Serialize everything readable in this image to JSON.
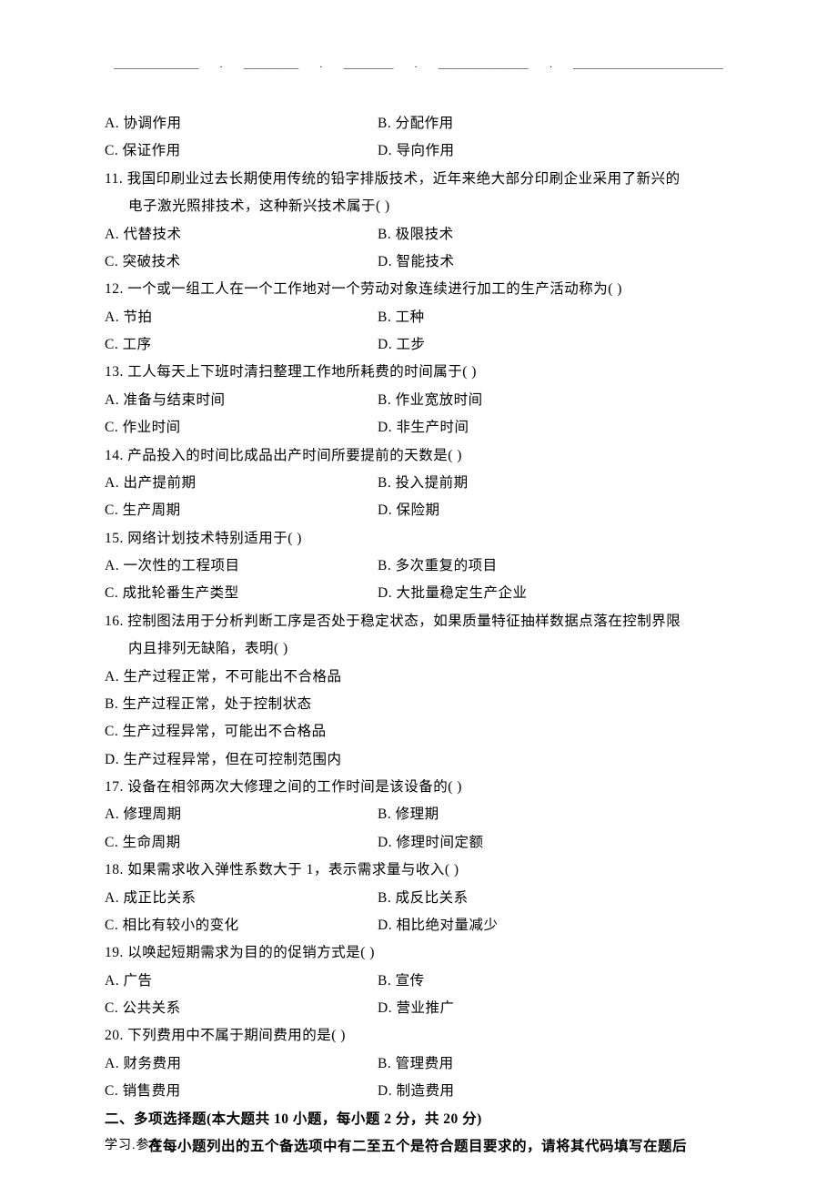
{
  "header_dash_segments": [
    "_________________",
    ".",
    "___________",
    ".",
    "__________",
    ".",
    "__________________",
    ".",
    "______________________________"
  ],
  "q10": {
    "optA": "A. 协调作用",
    "optB": "B. 分配作用",
    "optC": "C. 保证作用",
    "optD": "D. 导向作用"
  },
  "q11": {
    "line1": "11. 我国印刷业过去长期使用传统的铅字排版技术，近年来绝大部分印刷企业采用了新兴的",
    "line2": "电子激光照排技术，这种新兴技术属于(    )",
    "optA": "A. 代替技术",
    "optB": "B. 极限技术",
    "optC": "C. 突破技术",
    "optD": "D. 智能技术"
  },
  "q12": {
    "line1": "12. 一个或一组工人在一个工作地对一个劳动对象连续进行加工的生产活动称为(    )",
    "optA": "A. 节拍",
    "optB": "B. 工种",
    "optC": "C. 工序",
    "optD": "D. 工步"
  },
  "q13": {
    "line1": "13. 工人每天上下班时清扫整理工作地所耗费的时间属于(    )",
    "optA": "A. 准备与结束时间",
    "optB": "B. 作业宽放时间",
    "optC": "C. 作业时间",
    "optD": "D. 非生产时间"
  },
  "q14": {
    "line1": "14. 产品投入的时间比成品出产时间所要提前的天数是(    )",
    "optA": "A. 出产提前期",
    "optB": "B. 投入提前期",
    "optC": "C. 生产周期",
    "optD": "D. 保险期"
  },
  "q15": {
    "line1": "15. 网络计划技术特别适用于(    )",
    "optA": "A. 一次性的工程项目",
    "optB": "B. 多次重复的项目",
    "optC": "C. 成批轮番生产类型",
    "optD": "D. 大批量稳定生产企业"
  },
  "q16": {
    "line1": "16. 控制图法用于分析判断工序是否处于稳定状态，如果质量特征抽样数据点落在控制界限",
    "line2": "内且排列无缺陷，表明(    )",
    "optA": "A. 生产过程正常，不可能出不合格品",
    "optB": "B. 生产过程正常，处于控制状态",
    "optC": "C. 生产过程异常，可能出不合格品",
    "optD": "D. 生产过程异常，但在可控制范围内"
  },
  "q17": {
    "line1": "17. 设备在相邻两次大修理之间的工作时间是该设备的(    )",
    "optA": "A. 修理周期",
    "optB": "B. 修理期",
    "optC": "C. 生命周期",
    "optD": "D. 修理时间定额"
  },
  "q18": {
    "line1": "18. 如果需求收入弹性系数大于 1，表示需求量与收入(    )",
    "optA": "A. 成正比关系",
    "optB": "B. 成反比关系",
    "optC": "C. 相比有较小的变化",
    "optD": "D. 相比绝对量减少"
  },
  "q19": {
    "line1": "19. 以唤起短期需求为目的的促销方式是(    )",
    "optA": "A. 广告",
    "optB": "B. 宣传",
    "optC": "C. 公共关系",
    "optD": "D. 营业推广"
  },
  "q20": {
    "line1": "20. 下列费用中不属于期间费用的是(    )",
    "optA": "A. 财务费用",
    "optB": "B. 管理费用",
    "optC": "C. 销售费用",
    "optD": "D. 制造费用"
  },
  "section2_title": "二、多项选择题(本大题共 10 小题，每小题 2 分，共 20 分)",
  "section2_sub": "在每小题列出的五个备选项中有二至五个是符合题目要求的，请将其代码填写在题后",
  "footer": "学习.参考"
}
